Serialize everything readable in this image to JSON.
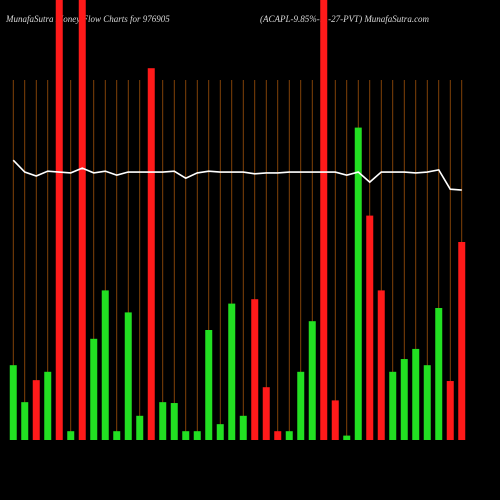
{
  "chart_data": {
    "type": "bar",
    "title": "MunafaSutra  Money Flow  Charts for 976905",
    "subtitle": "(ACAPL-9.85%-11-27-PVT) MunafaSutra.com",
    "categories": [
      null,
      null,
      null,
      null,
      null,
      null,
      null,
      null,
      null,
      null,
      null,
      null,
      null,
      null,
      null,
      null,
      null,
      null,
      null,
      null,
      null,
      null,
      null,
      null,
      null,
      null,
      null,
      null,
      null,
      null,
      null,
      null,
      null,
      null,
      null,
      null,
      null,
      null,
      null,
      null
    ],
    "values": [
      17,
      8.6,
      13.6,
      15.5,
      100,
      2,
      100,
      23,
      34,
      2,
      29,
      5.5,
      84.5,
      8.6,
      8.4,
      2,
      2,
      25,
      3.6,
      31,
      5.5,
      32,
      12,
      2,
      2,
      15.5,
      27,
      100,
      9,
      1,
      71,
      51,
      34,
      15.5,
      18.4,
      20.7,
      17,
      30,
      13.4,
      45
    ],
    "colors": [
      "#22e022",
      "#22e022",
      "#ff1a1a",
      "#22e022",
      "#ff1a1a",
      "#22e022",
      "#ff1a1a",
      "#22e022",
      "#22e022",
      "#22e022",
      "#22e022",
      "#22e022",
      "#ff1a1a",
      "#22e022",
      "#22e022",
      "#22e022",
      "#22e022",
      "#22e022",
      "#22e022",
      "#22e022",
      "#22e022",
      "#ff1a1a",
      "#ff1a1a",
      "#ff1a1a",
      "#22e022",
      "#22e022",
      "#22e022",
      "#ff1a1a",
      "#ff1a1a",
      "#22e022",
      "#22e022",
      "#ff1a1a",
      "#ff1a1a",
      "#22e022",
      "#22e022",
      "#22e022",
      "#22e022",
      "#22e022",
      "#ff1a1a",
      "#ff1a1a"
    ],
    "line": {
      "color": "#ffffff",
      "values": [
        63.6,
        60.9,
        60,
        61.1,
        60.9,
        60.7,
        61.8,
        60.7,
        61.1,
        60.2,
        60.9,
        60.9,
        60.9,
        60.9,
        61.1,
        59.5,
        60.7,
        61.1,
        60.9,
        60.9,
        60.9,
        60.5,
        60.7,
        60.7,
        60.9,
        60.9,
        60.9,
        60.9,
        60.9,
        60.2,
        60.9,
        58.6,
        60.9,
        60.9,
        60.9,
        60.7,
        60.9,
        61.4,
        57,
        56.8
      ]
    },
    "ylim": [
      0,
      100
    ],
    "grid_color": "#a0520a"
  }
}
